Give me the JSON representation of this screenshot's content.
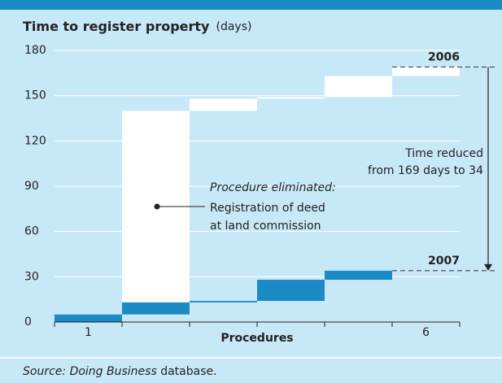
{
  "chart_data": {
    "type": "step-bar",
    "title": "Time to register property",
    "y_unit": "(days)",
    "x_label": "Procedures",
    "categories": [
      "1",
      null,
      null,
      null,
      null,
      "6"
    ],
    "series": [
      {
        "name": "2006",
        "color": "#ffffff",
        "values": [
          5,
          135,
          8,
          1,
          14,
          6
        ]
      },
      {
        "name": "2007",
        "color": "#1b8bc6",
        "values": [
          5,
          8,
          1,
          14,
          6,
          null
        ]
      }
    ],
    "ylim": [
      0,
      180
    ],
    "yticks": [
      0,
      30,
      60,
      90,
      120,
      150,
      180
    ],
    "grid": true,
    "annotations": {
      "reduction": [
        "Time reduced",
        "from 169 days to 34"
      ],
      "eliminated_heading": "Procedure eliminated:",
      "eliminated_text": [
        "Registration of deed",
        "at land commission"
      ]
    },
    "source": [
      "Source: ",
      "Doing Business",
      " database."
    ]
  }
}
